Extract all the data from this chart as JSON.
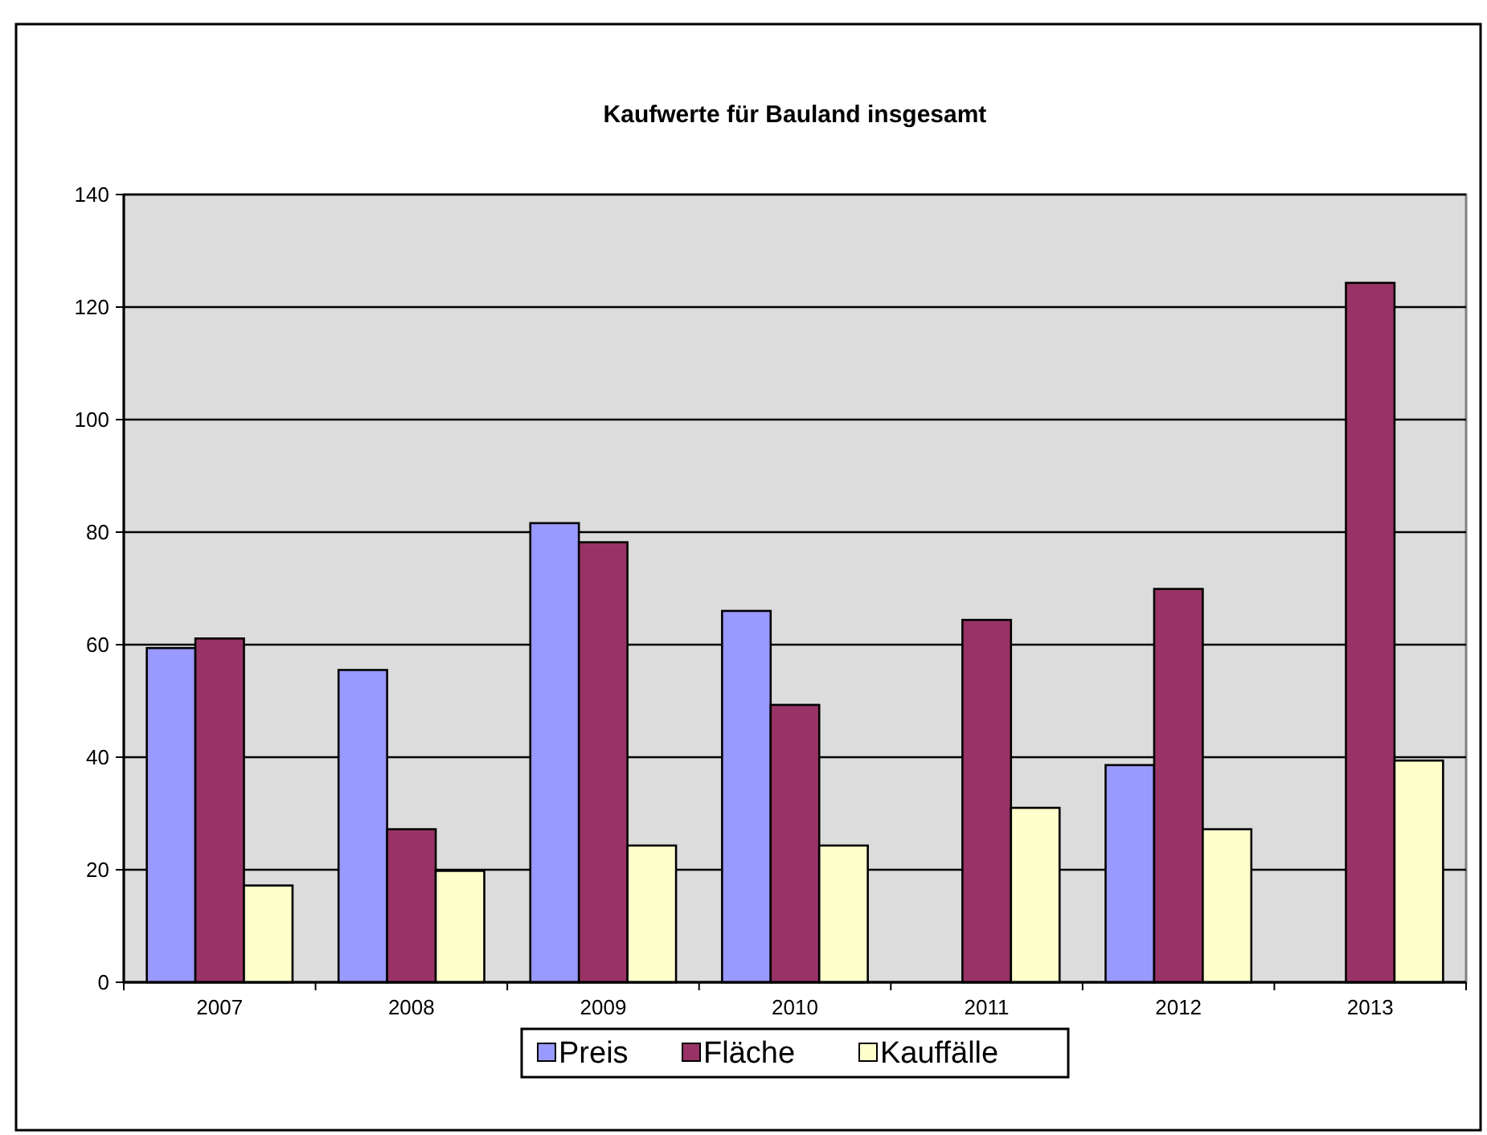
{
  "chart_data": {
    "type": "bar",
    "title": "Kaufwerte für Bauland insgesamt",
    "categories": [
      "2007",
      "2008",
      "2009",
      "2010",
      "2011",
      "2012",
      "2013"
    ],
    "series": [
      {
        "name": "Preis",
        "color": "#9999ff",
        "values": [
          59.4,
          55.5,
          81.6,
          66.0,
          null,
          38.6,
          null
        ]
      },
      {
        "name": "Fläche",
        "color": "#993366",
        "values": [
          61.1,
          27.2,
          78.2,
          49.3,
          64.4,
          69.9,
          124.3
        ]
      },
      {
        "name": "Kauffälle",
        "color": "#ffffcc",
        "values": [
          17.2,
          19.8,
          24.3,
          24.3,
          31.0,
          27.2,
          39.4
        ]
      }
    ],
    "ylim": [
      0,
      140
    ],
    "yticks": [
      0,
      20,
      40,
      60,
      80,
      100,
      120,
      140
    ],
    "grid": "y",
    "legend": "bottom"
  }
}
